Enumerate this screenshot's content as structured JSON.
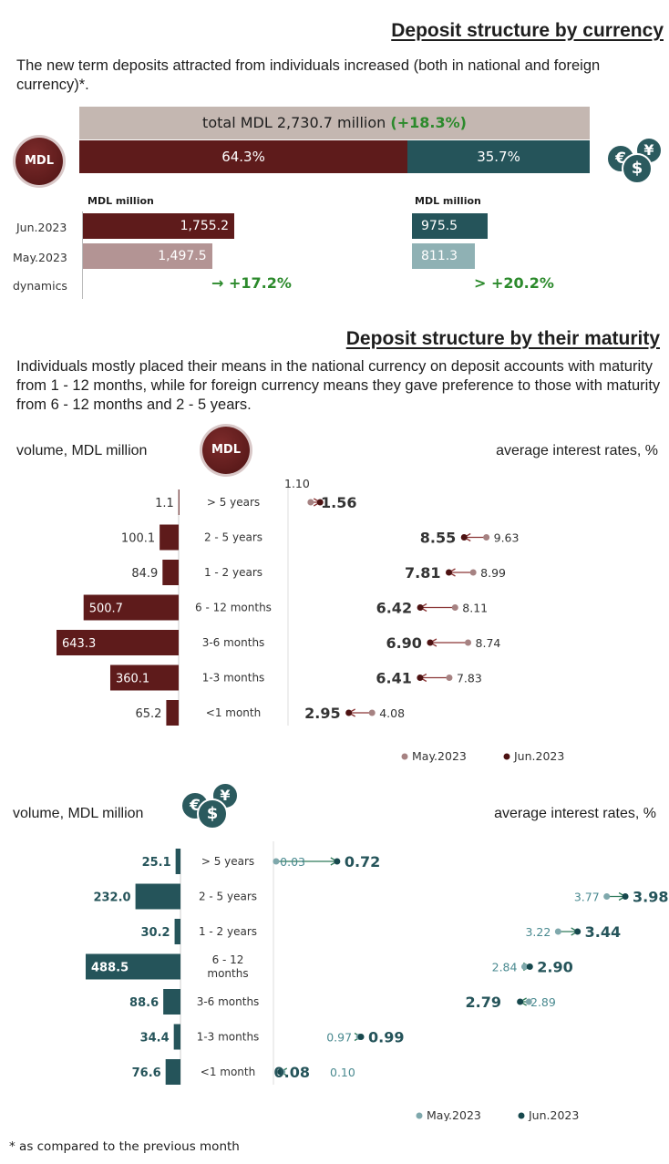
{
  "currency_section": {
    "title": "Deposit structure  by currency",
    "intro": "The new term deposits attracted from individuals increased (both in national and foreign currency)*.",
    "total_label": "total MDL 2,730.7 million",
    "total_change": "(+18.3%)",
    "mdl_badge": "MDL",
    "mdl_share_label": "64.3%",
    "fx_share_label": "35.7%",
    "mdl_share": 64.3,
    "fx_share": 35.7,
    "mdl_unit": "MDL million",
    "fx_unit": "MDL million",
    "row_labels": [
      "Jun.2023",
      "May.2023",
      "dynamics"
    ],
    "mdl_jun": "1,755.2",
    "mdl_may": "1,497.5",
    "mdl_dyn": "+17.2%",
    "fx_jun": "975.5",
    "fx_may": "811.3",
    "fx_dyn": "+20.2%",
    "colors": {
      "mdl": "#5e1b1b",
      "mdl_light": "#b39494",
      "fx": "#25545a",
      "fx_light": "#8fb1b4",
      "total": "#c4b7b1",
      "green": "#2c8a2c"
    }
  },
  "maturity_section": {
    "title": "Deposit structure by their maturity",
    "intro": "Individuals mostly placed their means in the national currency on deposit accounts with maturity from 1 - 12 months, while for  foreign currency means they gave preference to those with maturity from 6 - 12 months and 2 - 5 years.",
    "mdl_volume_label": "volume, MDL million",
    "mdl_rates_label": "average interest rates, %",
    "fx_volume_label": "volume, MDL million",
    "fx_rates_label": "average interest rates, %",
    "legend_may": "May.2023",
    "legend_jun": "Jun.2023"
  },
  "footnote": "* as compared to the previous month",
  "chart_data": [
    {
      "type": "bar",
      "title": "volume, MDL million",
      "currency": "MDL",
      "categories": [
        "> 5 years",
        "2 - 5 years",
        "1 - 2 years",
        "6 - 12 months",
        "3-6 months",
        "1-3 months",
        "<1 month"
      ],
      "value_labels": [
        "1.1",
        "100.1",
        "84.9",
        "500.7",
        "643.3",
        "360.1",
        "65.2"
      ],
      "values": [
        1.1,
        100.1,
        84.9,
        500.7,
        643.3,
        360.1,
        65.2
      ],
      "xlim": [
        0,
        700
      ]
    },
    {
      "type": "scatter",
      "title": "average interest rates, %",
      "currency": "MDL",
      "categories": [
        "> 5 years",
        "2 - 5 years",
        "1 - 2 years",
        "6 - 12 months",
        "3-6 months",
        "1-3 months",
        "<1 month"
      ],
      "series": [
        {
          "name": "May.2023",
          "values": [
            1.1,
            9.63,
            8.99,
            8.11,
            8.74,
            7.83,
            4.08
          ],
          "labels": [
            "1.10",
            "9.63",
            "8.99",
            "8.11",
            "8.74",
            "7.83",
            "4.08"
          ]
        },
        {
          "name": "Jun.2023",
          "values": [
            1.56,
            8.55,
            7.81,
            6.42,
            6.9,
            6.41,
            2.95
          ],
          "labels": [
            "1.56",
            "8.55",
            "7.81",
            "6.42",
            "6.90",
            "6.41",
            "2.95"
          ]
        }
      ],
      "xlim": [
        0,
        10
      ]
    },
    {
      "type": "bar",
      "title": "volume, MDL million",
      "currency": "foreign",
      "categories": [
        "> 5 years",
        "2 - 5 years",
        "1 - 2 years",
        "6 - 12 months",
        "3-6 months",
        "1-3 months",
        "<1 month"
      ],
      "display_categories": [
        "> 5 years",
        "2 - 5 years",
        "1 - 2 years",
        "6 - 12\nmonths",
        "3-6 months",
        "1-3 months",
        "<1 month"
      ],
      "value_labels": [
        "25.1",
        "232.0",
        "30.2",
        "488.5",
        "88.6",
        "34.4",
        "76.6"
      ],
      "values": [
        25.1,
        232.0,
        30.2,
        488.5,
        88.6,
        34.4,
        76.6
      ],
      "xlim": [
        0,
        500
      ]
    },
    {
      "type": "scatter",
      "title": "average interest rates, %",
      "currency": "foreign",
      "categories": [
        "> 5 years",
        "2 - 5 years",
        "1 - 2 years",
        "6 - 12 months",
        "3-6 months",
        "1-3 months",
        "<1 month"
      ],
      "series": [
        {
          "name": "May.2023",
          "values": [
            0.03,
            3.77,
            3.22,
            2.84,
            2.89,
            0.97,
            0.1
          ],
          "labels": [
            "0.03",
            "3.77",
            "3.22",
            "2.84",
            "2.89",
            "0.97",
            "0.10"
          ]
        },
        {
          "name": "Jun.2023",
          "values": [
            0.72,
            3.98,
            3.44,
            2.9,
            2.79,
            0.99,
            0.08
          ],
          "labels": [
            "0.72",
            "3.98",
            "3.44",
            "2.90",
            "2.79",
            "0.99",
            "0.08"
          ]
        }
      ],
      "xlim": [
        0,
        4.5
      ]
    }
  ]
}
